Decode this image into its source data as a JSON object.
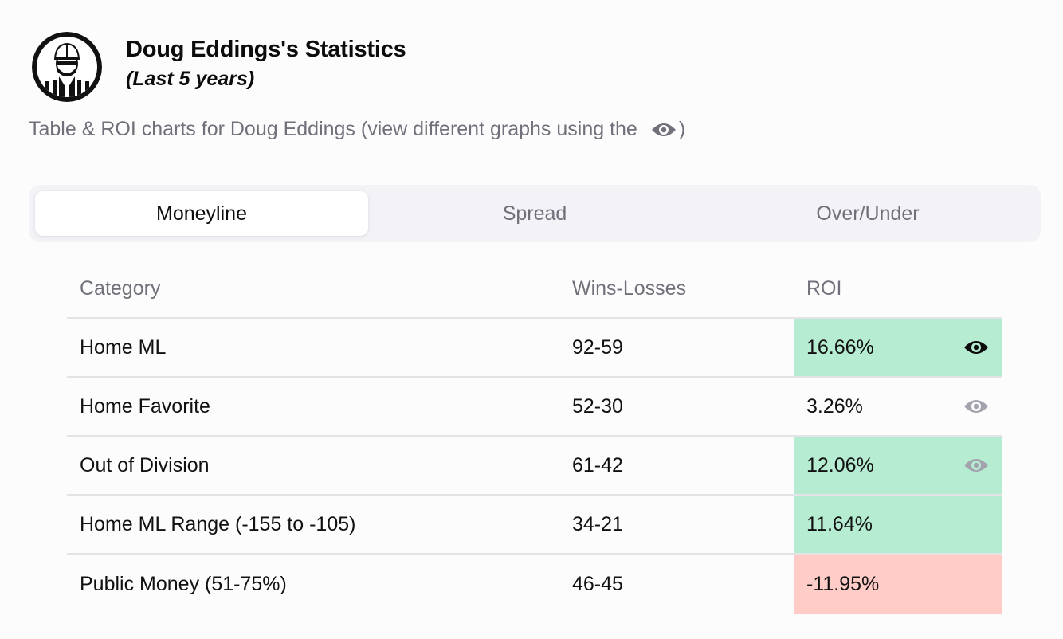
{
  "header": {
    "title": "Doug Eddings's Statistics",
    "subtitle": "(Last 5 years)",
    "avatar_icon": "referee-avatar-icon"
  },
  "description": {
    "text": "Table & ROI charts for Doug Eddings (view different graphs using the",
    "icon": "eye-icon",
    "suffix": ")"
  },
  "tabs": [
    {
      "label": "Moneyline",
      "active": true
    },
    {
      "label": "Spread",
      "active": false
    },
    {
      "label": "Over/Under",
      "active": false
    }
  ],
  "table": {
    "headers": [
      "Category",
      "Wins-Losses",
      "ROI"
    ],
    "rows": [
      {
        "category": "Home ML",
        "record": "92-59",
        "roi": "16.66%",
        "status": "positive",
        "eye": "selected"
      },
      {
        "category": "Home Favorite",
        "record": "52-30",
        "roi": "3.26%",
        "status": "neutral",
        "eye": "available"
      },
      {
        "category": "Out of Division",
        "record": "61-42",
        "roi": "12.06%",
        "status": "positive",
        "eye": "available"
      },
      {
        "category": "Home ML Range (-155 to -105)",
        "record": "34-21",
        "roi": "11.64%",
        "status": "positive",
        "eye": "none"
      },
      {
        "category": "Public Money (51-75%)",
        "record": "46-45",
        "roi": "-11.95%",
        "status": "negative",
        "eye": "none"
      }
    ]
  },
  "colors": {
    "positive": "#b6ecd2",
    "negative": "#ffccc8",
    "eye_selected": "#0c0c0c",
    "eye_available": "#a3a3ae"
  }
}
